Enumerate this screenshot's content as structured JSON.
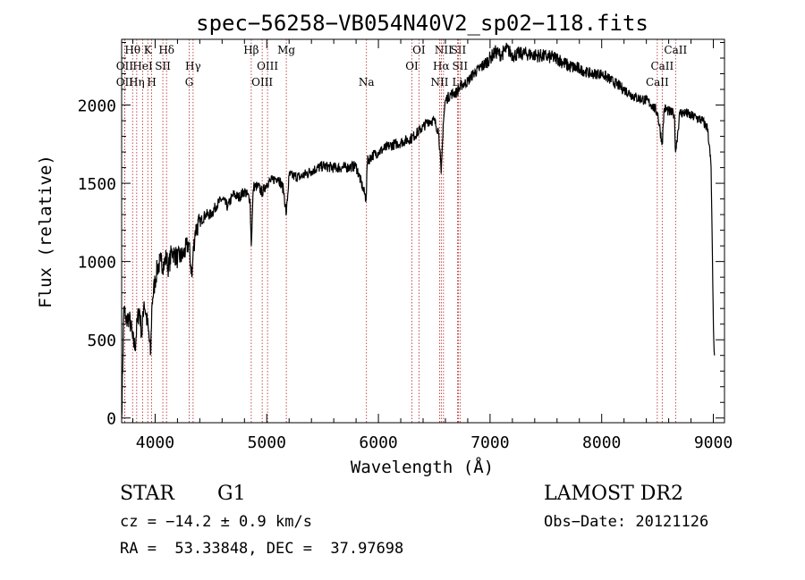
{
  "chart_data": {
    "type": "line",
    "title": "spec−56258−VB054N40V2_sp02−118.fits",
    "xlabel": "Wavelength (Å)",
    "ylabel": "Flux (relative)",
    "xlim": [
      3700,
      9100
    ],
    "ylim": [
      -30,
      2420
    ],
    "xticks": [
      4000,
      5000,
      6000,
      7000,
      8000,
      9000
    ],
    "yticks": [
      0,
      500,
      1000,
      1500,
      2000
    ],
    "series": [
      {
        "x": [
          3700,
          3720,
          3740,
          3760,
          3780,
          3800,
          3820,
          3840,
          3860,
          3880,
          3900,
          3920,
          3940,
          3960,
          3970,
          3980,
          4000,
          4020,
          4050,
          4080,
          4100,
          4120,
          4150,
          4200,
          4250,
          4300,
          4330,
          4340,
          4360,
          4400,
          4450,
          4500,
          4550,
          4600,
          4650,
          4700,
          4750,
          4800,
          4850,
          4861,
          4880,
          4920,
          4960,
          5000,
          5050,
          5100,
          5150,
          5175,
          5200,
          5300,
          5400,
          5500,
          5600,
          5700,
          5800,
          5890,
          5900,
          5950,
          6000,
          6100,
          6200,
          6300,
          6400,
          6450,
          6500,
          6540,
          6563,
          6580,
          6600,
          6650,
          6700,
          6750,
          6800,
          6850,
          6900,
          6950,
          7000,
          7050,
          7100,
          7150,
          7200,
          7300,
          7400,
          7500,
          7600,
          7700,
          7800,
          7900,
          8000,
          8100,
          8200,
          8300,
          8400,
          8450,
          8500,
          8542,
          8560,
          8600,
          8650,
          8662,
          8700,
          8750,
          8800,
          8850,
          8900,
          8950,
          8980,
          9000,
          9010
        ],
        "y": [
          0,
          720,
          600,
          650,
          600,
          500,
          450,
          620,
          700,
          520,
          750,
          650,
          560,
          400,
          700,
          780,
          880,
          960,
          1000,
          980,
          1030,
          960,
          1070,
          1020,
          1040,
          1120,
          900,
          1050,
          1200,
          1250,
          1300,
          1300,
          1360,
          1400,
          1350,
          1430,
          1410,
          1450,
          1400,
          1100,
          1480,
          1480,
          1440,
          1500,
          1520,
          1540,
          1460,
          1300,
          1550,
          1540,
          1580,
          1610,
          1600,
          1600,
          1610,
          1400,
          1640,
          1680,
          1700,
          1740,
          1760,
          1790,
          1860,
          1900,
          1900,
          1830,
          1550,
          1880,
          2030,
          2070,
          2080,
          2130,
          2150,
          2200,
          2230,
          2260,
          2300,
          2340,
          2320,
          2360,
          2320,
          2330,
          2320,
          2310,
          2300,
          2250,
          2230,
          2200,
          2200,
          2150,
          2100,
          2050,
          2030,
          2000,
          1950,
          1750,
          1980,
          1960,
          1940,
          1700,
          1950,
          1950,
          1930,
          1920,
          1900,
          1850,
          1600,
          600,
          400
        ]
      }
    ],
    "line_markers": [
      {
        "label": "Hθ",
        "x": 3798,
        "row": 0
      },
      {
        "label": "K",
        "x": 3934,
        "row": 0
      },
      {
        "label": "Hδ",
        "x": 4102,
        "row": 0
      },
      {
        "label": "HeI",
        "x": 3889,
        "row": 1
      },
      {
        "label": "OII",
        "x": 3727,
        "row": 1
      },
      {
        "label": "SII",
        "x": 4069,
        "row": 1
      },
      {
        "label": "Hγ",
        "x": 4340,
        "row": 1
      },
      {
        "label": "OII",
        "x": 3727,
        "row": 2
      },
      {
        "label": "Hη",
        "x": 3835,
        "row": 2
      },
      {
        "label": "H",
        "x": 3969,
        "row": 2
      },
      {
        "label": "G",
        "x": 4305,
        "row": 2
      },
      {
        "label": "Hβ",
        "x": 4861,
        "row": 0
      },
      {
        "label": "Mg",
        "x": 5175,
        "row": 0
      },
      {
        "label": "OIII",
        "x": 5007,
        "row": 1
      },
      {
        "label": "OIII",
        "x": 4959,
        "row": 2
      },
      {
        "label": "Na",
        "x": 5893,
        "row": 2
      },
      {
        "label": "OI",
        "x": 6363,
        "row": 0
      },
      {
        "label": "NII",
        "x": 6583,
        "row": 0
      },
      {
        "label": "SII",
        "x": 6716,
        "row": 0
      },
      {
        "label": "OI",
        "x": 6300,
        "row": 1
      },
      {
        "label": "Hα",
        "x": 6563,
        "row": 1
      },
      {
        "label": "SII",
        "x": 6731,
        "row": 1
      },
      {
        "label": "NII",
        "x": 6548,
        "row": 2
      },
      {
        "label": "Li",
        "x": 6708,
        "row": 2
      },
      {
        "label": "CaII",
        "x": 8662,
        "row": 0
      },
      {
        "label": "CaII",
        "x": 8542,
        "row": 1
      },
      {
        "label": "CaII",
        "x": 8498,
        "row": 2
      }
    ]
  },
  "info": {
    "object_class": "STAR",
    "subclass": "G1",
    "survey": "LAMOST DR2",
    "redshift": "cz = −14.2 ± 0.9 km/s",
    "obs_date": "Obs−Date: 20121126",
    "coords": "RA =  53.33848, DEC =  37.97698"
  }
}
